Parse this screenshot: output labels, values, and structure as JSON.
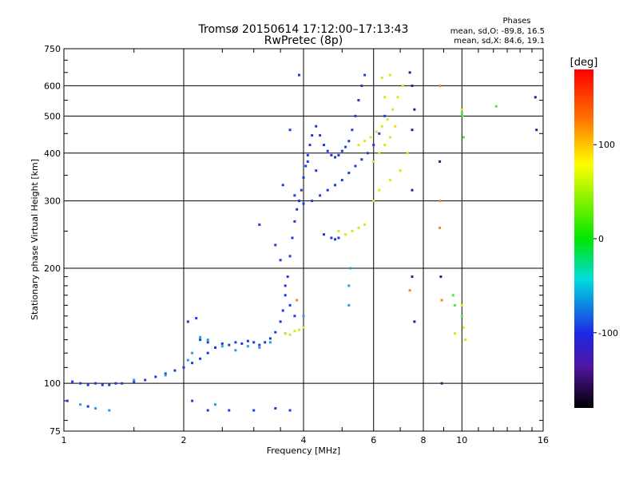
{
  "header": {
    "title_line1": "Tromsø 20150614 17:12:00–17:13:43",
    "title_line2": "RwPretec (8p)",
    "phases_label": "Phases",
    "phases_o": "mean, sd,O: -89.8, 16.5",
    "phases_x": "mean, sd,X: 84.6, 19.1"
  },
  "chart_data": {
    "type": "scatter",
    "xlabel": "Frequency [MHz]",
    "ylabel": "Stationary phase Virtual Height [km]",
    "x_scale": "log",
    "y_scale": "log",
    "xlim": [
      1,
      16
    ],
    "ylim": [
      75,
      750
    ],
    "x_ticks": [
      1,
      2,
      4,
      6,
      8,
      10,
      16
    ],
    "x_tick_labels": [
      "1",
      "2",
      "4",
      "6",
      "8",
      "10",
      "16"
    ],
    "y_ticks": [
      75,
      100,
      200,
      300,
      400,
      500,
      600,
      750
    ],
    "y_tick_labels": [
      "75",
      "100",
      "200",
      "300",
      "400",
      "500",
      "600",
      "750"
    ],
    "grid": true,
    "colorbar": {
      "label": "[deg]",
      "range": [
        -180,
        180
      ],
      "ticks": [
        100,
        0,
        -100
      ],
      "tick_labels": [
        "100",
        "0",
        "-100"
      ]
    },
    "series": [
      {
        "points": [
          [
            1.05,
            101
          ],
          [
            1.1,
            100
          ],
          [
            1.15,
            99
          ],
          [
            1.2,
            100
          ],
          [
            1.25,
            99
          ],
          [
            1.3,
            99
          ],
          [
            1.35,
            100
          ],
          [
            1.4,
            100
          ],
          [
            1.5,
            101
          ],
          [
            1.6,
            102
          ],
          [
            1.7,
            104
          ],
          [
            1.8,
            106
          ],
          [
            1.9,
            108
          ],
          [
            2.0,
            110
          ],
          [
            2.1,
            113
          ],
          [
            2.2,
            116
          ],
          [
            2.3,
            120
          ],
          [
            2.4,
            124
          ],
          [
            2.5,
            127
          ],
          [
            2.6,
            126
          ],
          [
            2.7,
            128
          ],
          [
            2.8,
            127
          ],
          [
            2.9,
            129
          ],
          [
            3.0,
            128
          ],
          [
            3.1,
            126
          ],
          [
            3.2,
            128
          ],
          [
            3.3,
            131
          ],
          [
            3.4,
            136
          ],
          [
            3.5,
            145
          ],
          [
            3.55,
            155
          ],
          [
            3.6,
            170
          ],
          [
            3.65,
            190
          ],
          [
            3.7,
            215
          ],
          [
            3.75,
            240
          ],
          [
            3.8,
            265
          ],
          [
            3.85,
            285
          ],
          [
            3.9,
            300
          ],
          [
            3.95,
            320
          ],
          [
            4.0,
            345
          ],
          [
            4.05,
            370
          ],
          [
            4.1,
            395
          ],
          [
            4.15,
            420
          ],
          [
            4.2,
            445
          ],
          [
            4.3,
            470
          ],
          [
            4.4,
            445
          ],
          [
            4.5,
            420
          ],
          [
            4.6,
            405
          ],
          [
            4.7,
            395
          ],
          [
            4.8,
            390
          ],
          [
            4.9,
            395
          ],
          [
            5.0,
            405
          ],
          [
            5.1,
            415
          ],
          [
            5.2,
            430
          ],
          [
            5.3,
            460
          ],
          [
            5.4,
            500
          ],
          [
            5.5,
            550
          ],
          [
            5.6,
            600
          ],
          [
            5.7,
            640
          ],
          [
            3.8,
            310
          ],
          [
            3.9,
            300
          ],
          [
            4.0,
            295
          ],
          [
            4.2,
            300
          ],
          [
            4.4,
            310
          ],
          [
            4.6,
            320
          ],
          [
            4.8,
            330
          ],
          [
            5.0,
            340
          ],
          [
            5.2,
            355
          ],
          [
            5.4,
            370
          ],
          [
            5.6,
            385
          ],
          [
            5.8,
            400
          ],
          [
            6.0,
            420
          ],
          [
            6.2,
            450
          ],
          [
            6.4,
            500
          ],
          [
            2.05,
            145
          ],
          [
            2.15,
            148
          ],
          [
            2.2,
            130
          ],
          [
            2.3,
            128
          ],
          [
            3.4,
            230
          ],
          [
            3.5,
            210
          ],
          [
            3.6,
            180
          ],
          [
            3.7,
            160
          ],
          [
            3.8,
            150
          ],
          [
            4.5,
            245
          ],
          [
            4.7,
            240
          ],
          [
            4.8,
            238
          ],
          [
            4.9,
            240
          ],
          [
            2.1,
            90
          ],
          [
            2.3,
            85
          ],
          [
            2.6,
            85
          ],
          [
            3.0,
            85
          ],
          [
            3.4,
            86
          ],
          [
            3.7,
            85
          ],
          [
            1.02,
            90
          ],
          [
            1.15,
            87
          ],
          [
            3.1,
            260
          ],
          [
            3.55,
            330
          ],
          [
            3.7,
            460
          ],
          [
            3.9,
            640
          ],
          [
            4.1,
            380
          ],
          [
            4.3,
            360
          ]
        ],
        "color": "#1e3cdc"
      },
      {
        "points": [
          [
            1.5,
            102
          ],
          [
            1.8,
            105
          ],
          [
            2.05,
            115
          ],
          [
            2.1,
            120
          ],
          [
            2.2,
            132
          ],
          [
            2.3,
            130
          ],
          [
            2.5,
            125
          ],
          [
            2.7,
            122
          ],
          [
            2.9,
            125
          ],
          [
            3.1,
            124
          ],
          [
            3.3,
            128
          ],
          [
            3.6,
            135
          ],
          [
            4.0,
            150
          ],
          [
            5.2,
            160
          ],
          [
            5.2,
            180
          ],
          [
            5.25,
            200
          ],
          [
            1.1,
            88
          ],
          [
            1.2,
            86
          ],
          [
            1.3,
            85
          ],
          [
            2.4,
            88
          ]
        ],
        "color": "#23a0e6"
      },
      {
        "points": [
          [
            5.5,
            420
          ],
          [
            5.7,
            430
          ],
          [
            5.9,
            440
          ],
          [
            6.1,
            455
          ],
          [
            6.3,
            470
          ],
          [
            6.5,
            490
          ],
          [
            6.7,
            520
          ],
          [
            6.9,
            560
          ],
          [
            7.1,
            600
          ],
          [
            6.0,
            380
          ],
          [
            6.2,
            400
          ],
          [
            6.4,
            420
          ],
          [
            6.6,
            440
          ],
          [
            6.8,
            470
          ],
          [
            6.3,
            630
          ],
          [
            6.6,
            640
          ],
          [
            6.4,
            560
          ],
          [
            6.0,
            300
          ],
          [
            6.2,
            320
          ],
          [
            6.6,
            340
          ],
          [
            7.0,
            360
          ],
          [
            7.3,
            400
          ],
          [
            4.9,
            250
          ],
          [
            5.1,
            245
          ],
          [
            5.3,
            250
          ],
          [
            5.5,
            255
          ],
          [
            5.7,
            260
          ],
          [
            3.6,
            135
          ],
          [
            3.7,
            134
          ],
          [
            3.8,
            137
          ],
          [
            3.9,
            138
          ],
          [
            4.0,
            140
          ],
          [
            10.0,
            160
          ],
          [
            10.1,
            140
          ],
          [
            10.2,
            130
          ],
          [
            9.6,
            135
          ],
          [
            10.0,
            520
          ]
        ],
        "color": "#dce61e"
      },
      {
        "points": [
          [
            10.0,
            510
          ],
          [
            10.05,
            500
          ],
          [
            10.1,
            440
          ],
          [
            10.0,
            150
          ],
          [
            12.2,
            530
          ],
          [
            9.5,
            170
          ],
          [
            9.6,
            160
          ]
        ],
        "color": "#50e650"
      },
      {
        "points": [
          [
            3.85,
            165
          ],
          [
            8.8,
            600
          ],
          [
            8.8,
            300
          ],
          [
            8.8,
            255
          ],
          [
            8.9,
            165
          ],
          [
            7.4,
            175
          ]
        ],
        "color": "#f08c14"
      },
      {
        "points": [
          [
            7.4,
            650
          ],
          [
            7.5,
            600
          ],
          [
            7.6,
            520
          ],
          [
            7.5,
            460
          ],
          [
            7.5,
            320
          ],
          [
            7.5,
            190
          ],
          [
            7.6,
            145
          ],
          [
            8.8,
            380
          ],
          [
            8.9,
            100
          ],
          [
            8.85,
            190
          ],
          [
            15.3,
            560
          ],
          [
            15.4,
            460
          ]
        ],
        "color": "#46128c"
      }
    ]
  }
}
